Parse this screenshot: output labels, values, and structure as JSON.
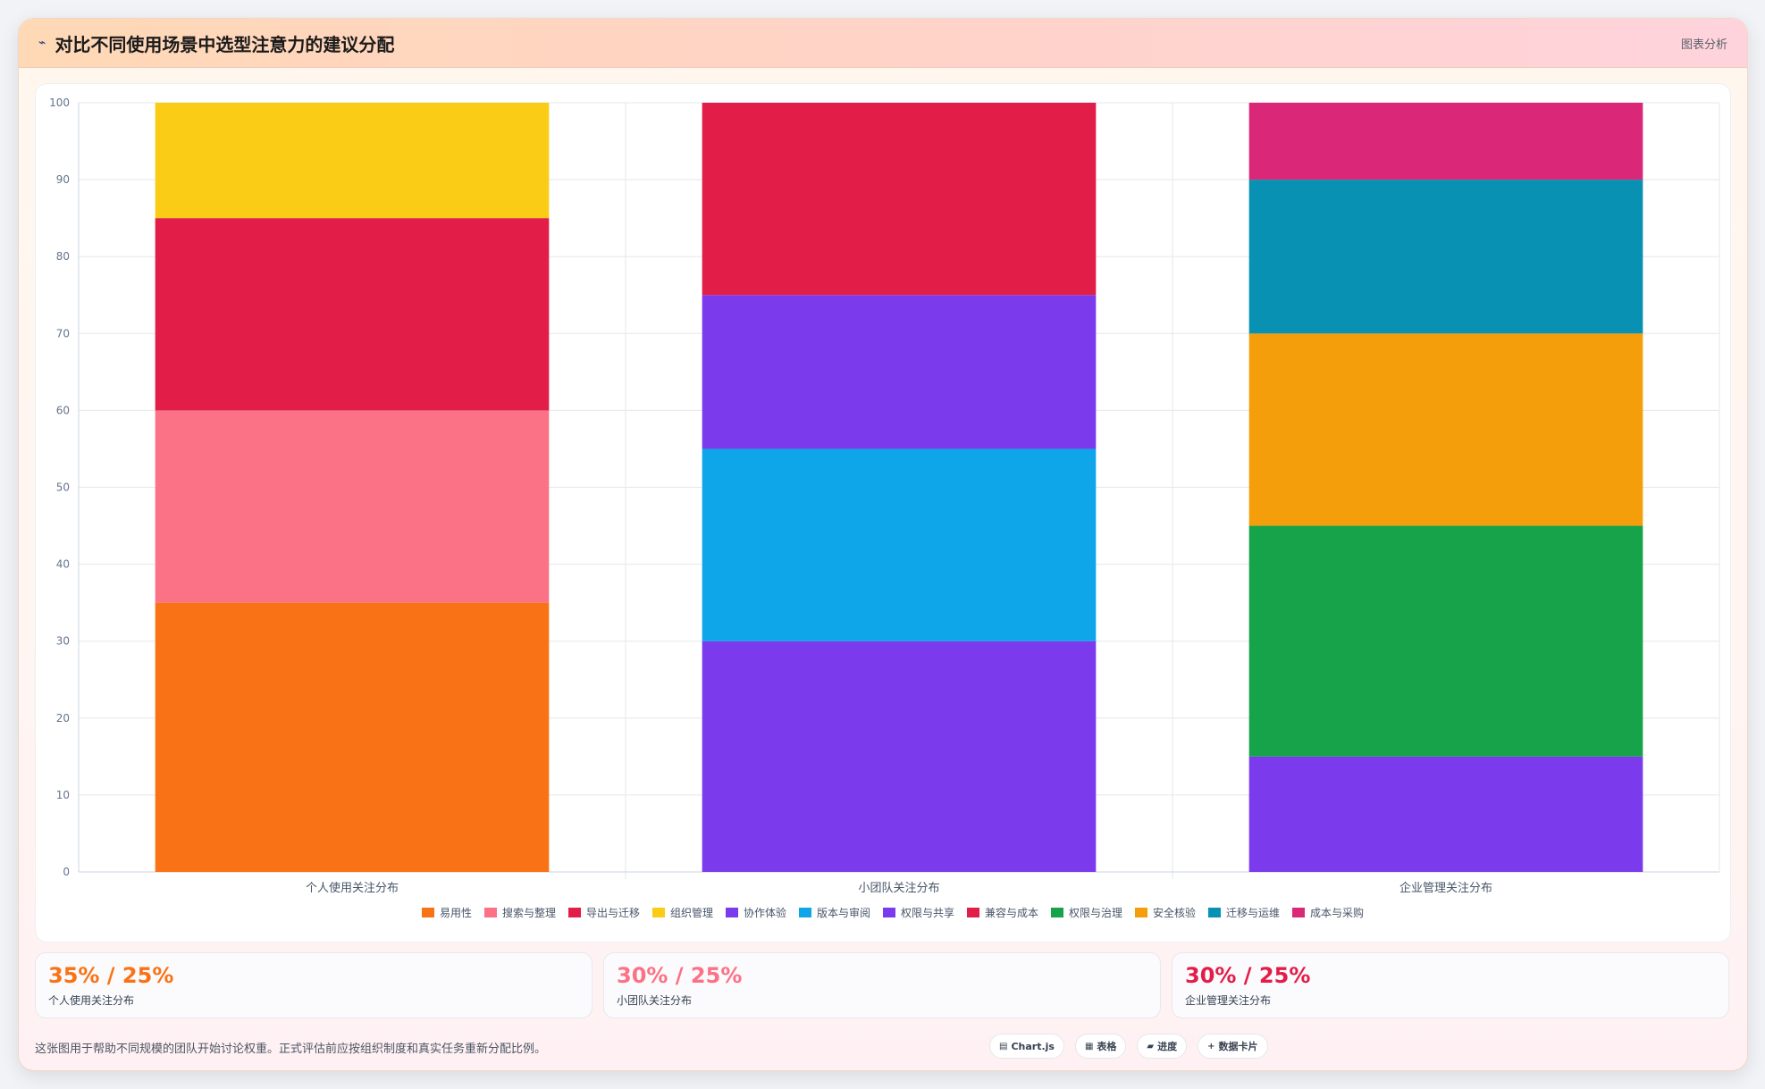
{
  "header": {
    "title": "对比不同使用场景中选型注意力的建议分配",
    "title_icon": "sparkle-icon",
    "link_label": "图表分析"
  },
  "chart_data": {
    "type": "bar",
    "stacked": true,
    "categories": [
      "个人使用关注分布",
      "小团队关注分布",
      "企业管理关注分布"
    ],
    "ylim": [
      0,
      100
    ],
    "yticks": [
      0,
      10,
      20,
      30,
      40,
      50,
      60,
      70,
      80,
      90,
      100
    ],
    "grid": true,
    "legend_position": "bottom",
    "series": [
      {
        "name": "易用性",
        "color": "#f97316",
        "values": [
          35,
          0,
          0
        ]
      },
      {
        "name": "搜索与整理",
        "color": "#fb7185",
        "values": [
          25,
          0,
          0
        ]
      },
      {
        "name": "导出与迁移",
        "color": "#e11d48",
        "values": [
          25,
          0,
          0
        ]
      },
      {
        "name": "组织管理",
        "color": "#facc15",
        "values": [
          15,
          0,
          0
        ]
      },
      {
        "name": "协作体验",
        "color": "#7c3aed",
        "values": [
          0,
          30,
          0
        ]
      },
      {
        "name": "版本与审阅",
        "color": "#0ea5e9",
        "values": [
          0,
          25,
          0
        ]
      },
      {
        "name": "权限与共享",
        "color": "#7c3aed",
        "values": [
          0,
          20,
          15
        ]
      },
      {
        "name": "兼容与成本",
        "color": "#e11d48",
        "values": [
          0,
          25,
          0
        ]
      },
      {
        "name": "权限与治理",
        "color": "#16a34a",
        "values": [
          0,
          0,
          30
        ]
      },
      {
        "name": "安全核验",
        "color": "#f59e0b",
        "values": [
          0,
          0,
          25
        ]
      },
      {
        "name": "迁移与运维",
        "color": "#0891b2",
        "values": [
          0,
          0,
          20
        ]
      },
      {
        "name": "成本与采购",
        "color": "#db2777",
        "values": [
          0,
          0,
          10
        ]
      }
    ]
  },
  "stats": [
    {
      "value": "35% / 25%",
      "label": "个人使用关注分布",
      "color": "#f97316"
    },
    {
      "value": "30% / 25%",
      "label": "小团队关注分布",
      "color": "#fb7185"
    },
    {
      "value": "30% / 25%",
      "label": "企业管理关注分布",
      "color": "#e11d48"
    }
  ],
  "footer": {
    "note": "这张图用于帮助不同规模的团队开始讨论权重。正式评估前应按组织制度和真实任务重新分配比例。",
    "chips": [
      {
        "label": "Chart.js",
        "icon": "chart-icon",
        "glyph": "▤"
      },
      {
        "label": "表格",
        "icon": "table-icon",
        "glyph": "▦"
      },
      {
        "label": "进度",
        "icon": "progress-icon",
        "glyph": "▰"
      },
      {
        "label": "数据卡片",
        "icon": "card-icon",
        "glyph": "+"
      }
    ]
  }
}
